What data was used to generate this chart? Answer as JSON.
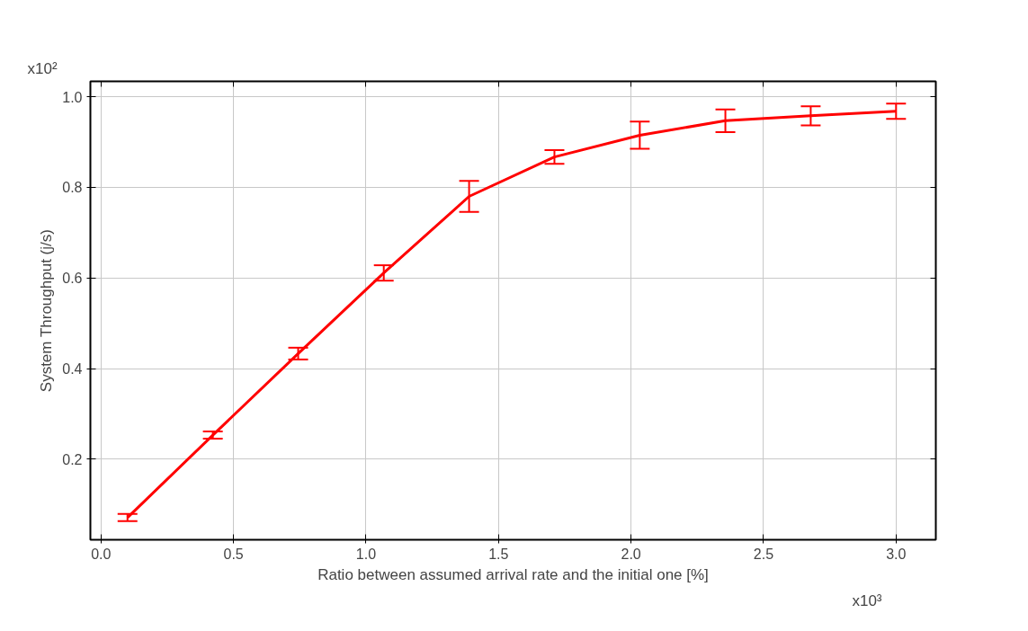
{
  "chart_data": {
    "type": "line",
    "xlabel": "Ratio between assumed arrival rate and the initial one [%]",
    "ylabel": "System Throughput (j/s)",
    "annotations": [
      "x10²",
      "x10³"
    ],
    "x": [
      0.1,
      0.422,
      0.744,
      1.067,
      1.389,
      1.711,
      2.033,
      2.356,
      2.678,
      3.0
    ],
    "series": [
      {
        "color": "#ff0000",
        "values": [
          0.071,
          0.253,
          0.433,
          0.611,
          0.78,
          0.867,
          0.915,
          0.947,
          0.958,
          0.968
        ],
        "errors": [
          0.008,
          0.008,
          0.013,
          0.017,
          0.034,
          0.015,
          0.03,
          0.025,
          0.021,
          0.017
        ]
      }
    ],
    "xlim": [
      -0.04,
      3.15
    ],
    "ylim": [
      0.022,
      1.034
    ],
    "xticks": [
      {
        "value": 0,
        "label": "0.0"
      },
      0.5,
      {
        "value": 1,
        "label": "1.0"
      },
      1.5,
      {
        "value": 2,
        "label": "2.0"
      },
      2.5,
      {
        "value": 3,
        "label": "3.0"
      }
    ],
    "yticks": [
      0.2,
      0.4,
      0.6,
      0.8,
      {
        "value": 1,
        "label": "1.0"
      }
    ],
    "grid": true,
    "marker": "none",
    "line_style": "solid"
  }
}
